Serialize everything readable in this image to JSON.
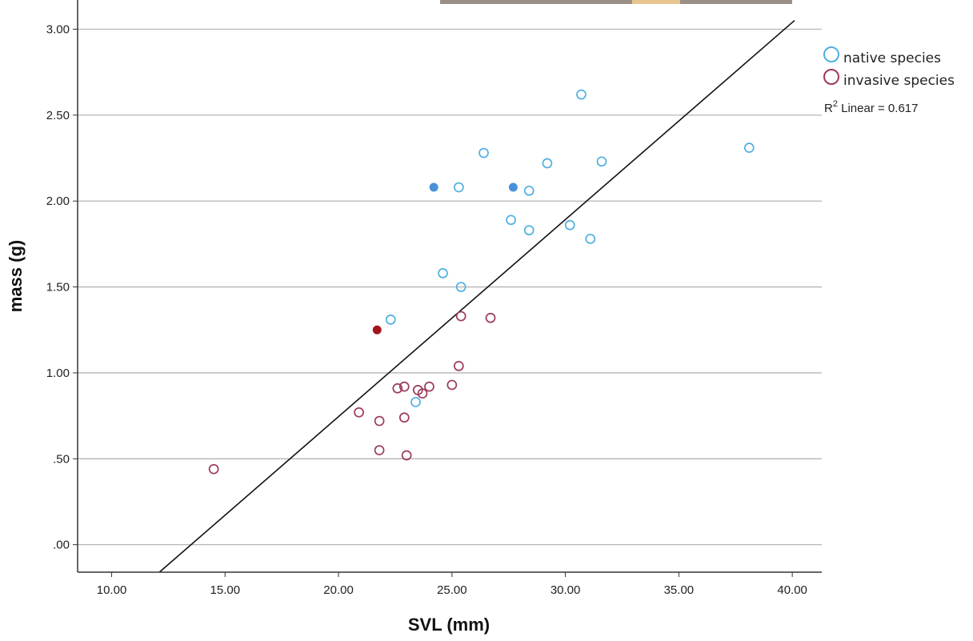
{
  "chart_data": {
    "type": "scatter",
    "xlabel": "SVL (mm)",
    "ylabel": "mass (g)",
    "xlim": [
      8.5,
      41.3
    ],
    "ylim": [
      -0.16,
      3.17
    ],
    "x_ticks": [
      {
        "value": 10,
        "label": "10.00"
      },
      {
        "value": 15,
        "label": "15.00"
      },
      {
        "value": 20,
        "label": "20.00"
      },
      {
        "value": 25,
        "label": "25.00"
      },
      {
        "value": 30,
        "label": "30.00"
      },
      {
        "value": 35,
        "label": "35.00"
      },
      {
        "value": 40,
        "label": "40.00"
      }
    ],
    "y_ticks": [
      {
        "value": 0,
        "label": ".00"
      },
      {
        "value": 0.5,
        "label": ".50"
      },
      {
        "value": 1.0,
        "label": "1.00"
      },
      {
        "value": 1.5,
        "label": "1.50"
      },
      {
        "value": 2.0,
        "label": "2.00"
      },
      {
        "value": 2.5,
        "label": "2.50"
      },
      {
        "value": 3.0,
        "label": "3.00"
      }
    ],
    "grid": "horizontal",
    "legend_placement": "top-right",
    "series": [
      {
        "name": "native species",
        "color": "#4FB0E0",
        "marker": "open-circle",
        "points": [
          {
            "x": 30.7,
            "y": 2.62
          },
          {
            "x": 38.1,
            "y": 2.31
          },
          {
            "x": 26.4,
            "y": 2.28
          },
          {
            "x": 29.2,
            "y": 2.22
          },
          {
            "x": 31.6,
            "y": 2.23
          },
          {
            "x": 25.3,
            "y": 2.08
          },
          {
            "x": 28.4,
            "y": 2.06
          },
          {
            "x": 27.6,
            "y": 1.89
          },
          {
            "x": 28.4,
            "y": 1.83
          },
          {
            "x": 30.2,
            "y": 1.86
          },
          {
            "x": 31.1,
            "y": 1.78
          },
          {
            "x": 24.6,
            "y": 1.58
          },
          {
            "x": 25.4,
            "y": 1.5
          },
          {
            "x": 22.3,
            "y": 1.31
          },
          {
            "x": 23.4,
            "y": 0.83
          }
        ]
      },
      {
        "name": "native species (highlighted)",
        "color": "#4A90D9",
        "marker": "filled-circle",
        "points": [
          {
            "x": 24.2,
            "y": 2.08
          },
          {
            "x": 27.7,
            "y": 2.08
          }
        ]
      },
      {
        "name": "invasive species",
        "color": "#9B3A5A",
        "marker": "open-circle",
        "points": [
          {
            "x": 25.4,
            "y": 1.33
          },
          {
            "x": 26.7,
            "y": 1.32
          },
          {
            "x": 25.3,
            "y": 1.04
          },
          {
            "x": 22.6,
            "y": 0.91
          },
          {
            "x": 22.9,
            "y": 0.92
          },
          {
            "x": 23.5,
            "y": 0.9
          },
          {
            "x": 23.7,
            "y": 0.88
          },
          {
            "x": 24.0,
            "y": 0.92
          },
          {
            "x": 25.0,
            "y": 0.93
          },
          {
            "x": 20.9,
            "y": 0.77
          },
          {
            "x": 21.8,
            "y": 0.72
          },
          {
            "x": 22.9,
            "y": 0.74
          },
          {
            "x": 21.8,
            "y": 0.55
          },
          {
            "x": 23.0,
            "y": 0.52
          },
          {
            "x": 14.5,
            "y": 0.44
          }
        ]
      },
      {
        "name": "invasive species (highlighted)",
        "color": "#A3161C",
        "marker": "filled-circle",
        "points": [
          {
            "x": 21.7,
            "y": 1.25
          }
        ]
      }
    ],
    "fit_line": {
      "type": "linear",
      "slope": 0.1147,
      "intercept": -1.5486,
      "x_range": [
        12.1,
        40.1
      ],
      "color": "#111111"
    },
    "legend": [
      {
        "label": "native species",
        "color": "#4FB0E0"
      },
      {
        "label": "invasive species",
        "color": "#9B3A5A"
      }
    ],
    "annotation": {
      "prefix": "R",
      "superscript": "2",
      "suffix": " Linear = 0.617"
    }
  }
}
